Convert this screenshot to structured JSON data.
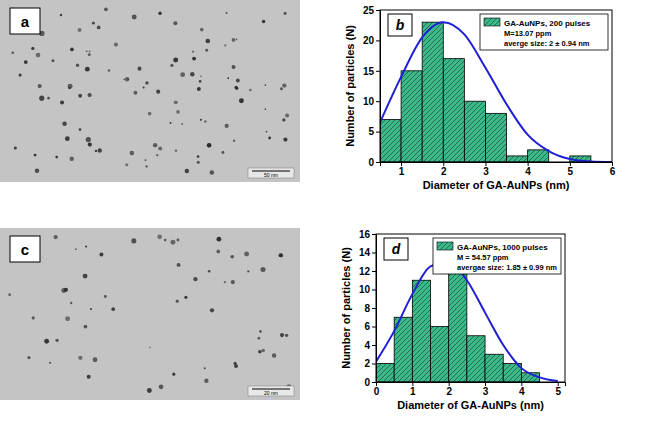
{
  "chart_data": [
    {
      "type": "histogram",
      "title": "b",
      "x_label": "Diameter of GA-AuNPs (nm)",
      "y_label": "Number of particles (N)",
      "xlim": [
        0.5,
        6
      ],
      "xticks": [
        1,
        2,
        3,
        4,
        5,
        6
      ],
      "ylim": [
        0,
        25
      ],
      "yticks": [
        0,
        5,
        10,
        15,
        20,
        25
      ],
      "legend": "upper right",
      "annotations": [
        "M=13.07 ppm",
        "averge size: 2 ± 0.94 nm"
      ],
      "series": [
        {
          "name": "GA-AuNPs, 200 pulses",
          "type": "histogram",
          "color": "#3cb88a",
          "bins": [
            0.5,
            1,
            1.5,
            2,
            2.5,
            3,
            3.5,
            4,
            4.5,
            5,
            5.5
          ],
          "values": [
            7,
            15,
            23,
            17,
            10,
            8,
            1,
            2,
            0,
            1
          ]
        },
        {
          "type": "line",
          "color": "#1f1fd6",
          "x": [
            0.5,
            1,
            1.5,
            2,
            2.5,
            3,
            3.5,
            4,
            4.5,
            5,
            5.5,
            6
          ],
          "values": [
            6.5,
            14,
            20.5,
            23,
            21,
            15.5,
            9.5,
            4.5,
            1.8,
            0.5,
            0.1,
            0
          ]
        }
      ]
    },
    {
      "type": "histogram",
      "title": "d",
      "x_label": "Diameter of GA-AuNPs (nm)",
      "y_label": "Number of particles (N)",
      "xlim": [
        0,
        5.2
      ],
      "xticks": [
        0,
        1,
        2,
        3,
        4,
        5
      ],
      "ylim": [
        0,
        16
      ],
      "yticks": [
        0,
        2,
        4,
        6,
        8,
        10,
        12,
        14,
        16
      ],
      "legend": "upper right",
      "annotations": [
        "M = 54.57 ppm",
        "avergae size: 1.85 ± 0.99 nm"
      ],
      "series": [
        {
          "name": "GA-AuNPs, 1000 pulses",
          "type": "histogram",
          "color": "#3cb88a",
          "bins": [
            0,
            0.5,
            1,
            1.5,
            2,
            2.5,
            3,
            3.5,
            4,
            4.5
          ],
          "values": [
            2,
            7,
            11,
            6,
            13,
            5,
            3,
            2,
            1
          ]
        },
        {
          "type": "line",
          "color": "#1f1fd6",
          "x": [
            0,
            0.5,
            1,
            1.5,
            2,
            2.5,
            3,
            3.5,
            4,
            4.5,
            5
          ],
          "values": [
            2.2,
            5.5,
            9.5,
            12.5,
            13,
            11,
            7.5,
            4,
            1.5,
            0.5,
            0.1
          ]
        }
      ]
    }
  ],
  "images": [
    {
      "label": "a",
      "scale_bar": "50 nm"
    },
    {
      "label": "c",
      "scale_bar": "20 nm"
    }
  ]
}
